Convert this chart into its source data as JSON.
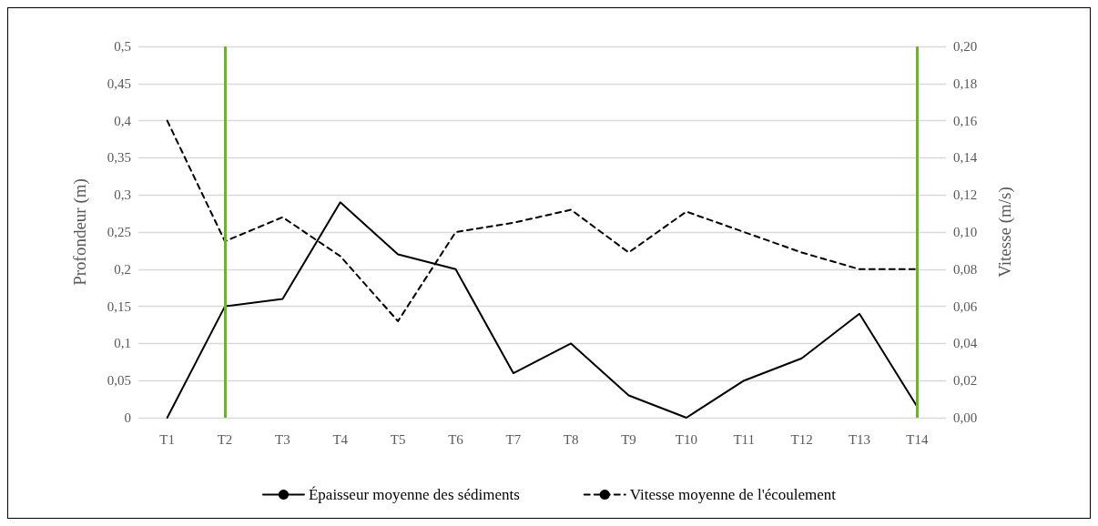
{
  "chart_data": {
    "type": "line",
    "ylabel": "Profondeur (m)",
    "y2label": "Vitesse (m/s)",
    "categories": [
      "T1",
      "T2",
      "T3",
      "T4",
      "T5",
      "T6",
      "T7",
      "T8",
      "T9",
      "T10",
      "T11",
      "T12",
      "T13",
      "T14"
    ],
    "series": [
      {
        "name": "Épaisseur moyenne des sédiments",
        "color": "#000000",
        "line_style": "solid",
        "values": [
          0,
          0.15,
          0.16,
          0.29,
          0.22,
          0.2,
          0.06,
          0.1,
          0.03,
          0,
          0.05,
          0.08,
          0.14,
          0.015
        ]
      },
      {
        "name": "Vitesse moyenne de l'écoulement",
        "color": "#000000",
        "line_style": "dashed",
        "axis": "y2",
        "values": [
          0.16,
          0.095,
          0.108,
          0.087,
          0.052,
          0.1,
          0.105,
          0.112,
          0.089,
          0.111,
          0.1,
          0.089,
          0.08,
          0.08
        ]
      }
    ],
    "ylim": [
      0,
      0.5
    ],
    "yticks": [
      0,
      {
        "value": 0.05,
        "label": "0,05"
      },
      {
        "value": 0.1,
        "label": "0,1"
      },
      {
        "value": 0.15,
        "label": "0,15"
      },
      {
        "value": 0.2,
        "label": "0,2"
      },
      {
        "value": 0.25,
        "label": "0,25"
      },
      {
        "value": 0.3,
        "label": "0,3"
      },
      {
        "value": 0.35,
        "label": "0,35"
      },
      {
        "value": 0.4,
        "label": "0,4"
      },
      {
        "value": 0.45,
        "label": "0,45"
      },
      {
        "value": 0.5,
        "label": "0,5"
      }
    ],
    "y2lim": [
      0,
      0.2
    ],
    "y2ticks": [
      {
        "value": 0,
        "label": "0,00"
      },
      {
        "value": 0.02,
        "label": "0,02"
      },
      {
        "value": 0.04,
        "label": "0,04"
      },
      {
        "value": 0.06,
        "label": "0,06"
      },
      {
        "value": 0.08,
        "label": "0,08"
      },
      {
        "value": 0.1,
        "label": "0,10"
      },
      {
        "value": 0.12,
        "label": "0,12"
      },
      {
        "value": 0.14,
        "label": "0,14"
      },
      {
        "value": 0.16,
        "label": "0,16"
      },
      {
        "value": 0.18,
        "label": "0,18"
      },
      {
        "value": 0.2,
        "label": "0,20"
      }
    ],
    "ref_lines": [
      {
        "axis": "x",
        "value": "T2",
        "color": "#70ad47"
      },
      {
        "axis": "x",
        "value": "T14",
        "color": "#70ad47"
      }
    ],
    "grid": "y",
    "legend": "bottom",
    "marker": "none"
  }
}
